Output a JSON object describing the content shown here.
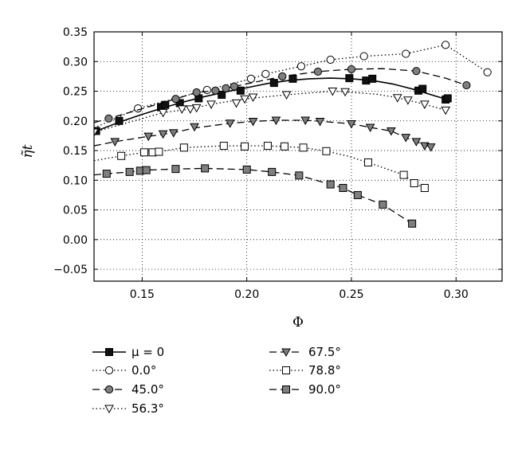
{
  "chart_data": {
    "type": "line",
    "xlabel": "Φ",
    "ylabel": "η̃t",
    "xlim": [
      0.127,
      0.322
    ],
    "ylim": [
      -0.07,
      0.35
    ],
    "xticks": [
      "0.15",
      "0.20",
      "0.25",
      "0.30"
    ],
    "xtick_values": [
      0.15,
      0.2,
      0.25,
      0.3
    ],
    "yticks": [
      "0.35",
      "0.30",
      "0.25",
      "0.20",
      "0.15",
      "0.10",
      "0.05",
      "0.00",
      "−0.05"
    ],
    "ytick_values": [
      0.35,
      0.3,
      0.25,
      0.2,
      0.15,
      0.1,
      0.05,
      0.0,
      -0.05
    ],
    "grid": true,
    "legend_position": "bottom",
    "series": [
      {
        "name": "μ = 0",
        "line": "solid",
        "marker": "square",
        "marker_fill": "#111111",
        "x": [
          0.128,
          0.139,
          0.159,
          0.161,
          0.168,
          0.177,
          0.188,
          0.197,
          0.213,
          0.222,
          0.249,
          0.257,
          0.26,
          0.282,
          0.284,
          0.295,
          0.296
        ],
        "y": [
          0.183,
          0.2,
          0.223,
          0.227,
          0.23,
          0.238,
          0.244,
          0.251,
          0.264,
          0.271,
          0.272,
          0.268,
          0.271,
          0.251,
          0.254,
          0.236,
          0.238
        ],
        "curve_x": [
          0.128,
          0.14,
          0.15,
          0.16,
          0.17,
          0.18,
          0.19,
          0.2,
          0.21,
          0.22,
          0.23,
          0.24,
          0.25,
          0.26,
          0.27,
          0.28,
          0.29,
          0.296
        ],
        "curve_y": [
          0.183,
          0.199,
          0.211,
          0.222,
          0.232,
          0.241,
          0.249,
          0.256,
          0.263,
          0.268,
          0.271,
          0.272,
          0.271,
          0.268,
          0.262,
          0.253,
          0.242,
          0.236
        ]
      },
      {
        "name": "0.0°",
        "line": "dotted",
        "marker": "circle",
        "marker_fill": "#ffffff",
        "x": [
          0.148,
          0.181,
          0.202,
          0.209,
          0.226,
          0.24,
          0.256,
          0.276,
          0.295,
          0.315
        ],
        "y": [
          0.221,
          0.252,
          0.271,
          0.279,
          0.292,
          0.303,
          0.309,
          0.313,
          0.328,
          0.282
        ],
        "curve_x": [
          0.127,
          0.148,
          0.181,
          0.202,
          0.209,
          0.226,
          0.24,
          0.256,
          0.276,
          0.295,
          0.315
        ],
        "curve_y": [
          0.188,
          0.221,
          0.252,
          0.271,
          0.279,
          0.292,
          0.303,
          0.309,
          0.313,
          0.328,
          0.282
        ]
      },
      {
        "name": "45.0°",
        "line": "dashed",
        "marker": "circle",
        "marker_fill": "#7f7f7f",
        "x": [
          0.134,
          0.166,
          0.176,
          0.185,
          0.19,
          0.194,
          0.217,
          0.234,
          0.25,
          0.281,
          0.305
        ],
        "y": [
          0.204,
          0.237,
          0.248,
          0.251,
          0.255,
          0.258,
          0.275,
          0.283,
          0.287,
          0.284,
          0.26
        ],
        "curve_x": [
          0.127,
          0.134,
          0.166,
          0.176,
          0.185,
          0.194,
          0.217,
          0.234,
          0.25,
          0.265,
          0.281,
          0.295,
          0.305
        ],
        "curve_y": [
          0.197,
          0.204,
          0.237,
          0.248,
          0.251,
          0.258,
          0.275,
          0.283,
          0.287,
          0.288,
          0.284,
          0.272,
          0.26
        ]
      },
      {
        "name": "56.3°",
        "line": "dotted",
        "marker": "triangle-down",
        "marker_fill": "#ffffff",
        "x": [
          0.127,
          0.16,
          0.169,
          0.173,
          0.176,
          0.183,
          0.195,
          0.199,
          0.203,
          0.219,
          0.241,
          0.247,
          0.272,
          0.277,
          0.285,
          0.295
        ],
        "y": [
          0.181,
          0.214,
          0.22,
          0.22,
          0.222,
          0.228,
          0.23,
          0.237,
          0.24,
          0.244,
          0.25,
          0.249,
          0.239,
          0.235,
          0.228,
          0.218
        ],
        "curve_x": [
          0.127,
          0.16,
          0.173,
          0.183,
          0.199,
          0.219,
          0.241,
          0.247,
          0.262,
          0.272,
          0.285,
          0.295
        ],
        "curve_y": [
          0.181,
          0.214,
          0.22,
          0.228,
          0.237,
          0.244,
          0.25,
          0.249,
          0.245,
          0.239,
          0.228,
          0.218
        ]
      },
      {
        "name": "67.5°",
        "line": "dashed",
        "marker": "triangle-down",
        "marker_fill": "#7f7f7f",
        "x": [
          0.137,
          0.153,
          0.16,
          0.165,
          0.175,
          0.192,
          0.203,
          0.214,
          0.228,
          0.235,
          0.25,
          0.259,
          0.269,
          0.276,
          0.281,
          0.285,
          0.288
        ],
        "y": [
          0.165,
          0.174,
          0.178,
          0.18,
          0.19,
          0.196,
          0.199,
          0.201,
          0.201,
          0.199,
          0.195,
          0.189,
          0.183,
          0.172,
          0.165,
          0.158,
          0.156
        ],
        "curve_x": [
          0.127,
          0.137,
          0.153,
          0.165,
          0.175,
          0.192,
          0.203,
          0.214,
          0.228,
          0.24,
          0.25,
          0.259,
          0.269,
          0.276,
          0.281,
          0.288
        ],
        "curve_y": [
          0.158,
          0.165,
          0.174,
          0.18,
          0.188,
          0.196,
          0.199,
          0.201,
          0.201,
          0.198,
          0.195,
          0.189,
          0.183,
          0.172,
          0.165,
          0.156
        ]
      },
      {
        "name": "78.8°",
        "line": "dotted",
        "marker": "square",
        "marker_fill": "#ffffff",
        "x": [
          0.14,
          0.151,
          0.155,
          0.158,
          0.17,
          0.189,
          0.199,
          0.21,
          0.218,
          0.227,
          0.238,
          0.258,
          0.275,
          0.28,
          0.285
        ],
        "y": [
          0.141,
          0.147,
          0.147,
          0.148,
          0.155,
          0.158,
          0.157,
          0.158,
          0.157,
          0.155,
          0.149,
          0.13,
          0.109,
          0.095,
          0.087
        ],
        "curve_x": [
          0.127,
          0.14,
          0.151,
          0.158,
          0.17,
          0.189,
          0.21,
          0.227,
          0.238,
          0.248,
          0.258,
          0.275,
          0.28,
          0.285
        ],
        "curve_y": [
          0.133,
          0.141,
          0.147,
          0.148,
          0.155,
          0.158,
          0.158,
          0.155,
          0.149,
          0.141,
          0.13,
          0.109,
          0.095,
          0.087
        ]
      },
      {
        "name": "90.0°",
        "line": "dashed",
        "marker": "square",
        "marker_fill": "#7f7f7f",
        "x": [
          0.133,
          0.144,
          0.149,
          0.152,
          0.166,
          0.18,
          0.2,
          0.212,
          0.225,
          0.24,
          0.246,
          0.253,
          0.265,
          0.279
        ],
        "y": [
          0.111,
          0.114,
          0.116,
          0.117,
          0.119,
          0.12,
          0.118,
          0.114,
          0.108,
          0.093,
          0.087,
          0.075,
          0.059,
          0.027
        ],
        "curve_x": [
          0.127,
          0.133,
          0.144,
          0.152,
          0.166,
          0.18,
          0.2,
          0.212,
          0.225,
          0.24,
          0.246,
          0.253,
          0.265,
          0.279
        ],
        "curve_y": [
          0.109,
          0.111,
          0.114,
          0.117,
          0.119,
          0.12,
          0.118,
          0.114,
          0.108,
          0.093,
          0.087,
          0.075,
          0.059,
          0.027
        ]
      }
    ]
  }
}
